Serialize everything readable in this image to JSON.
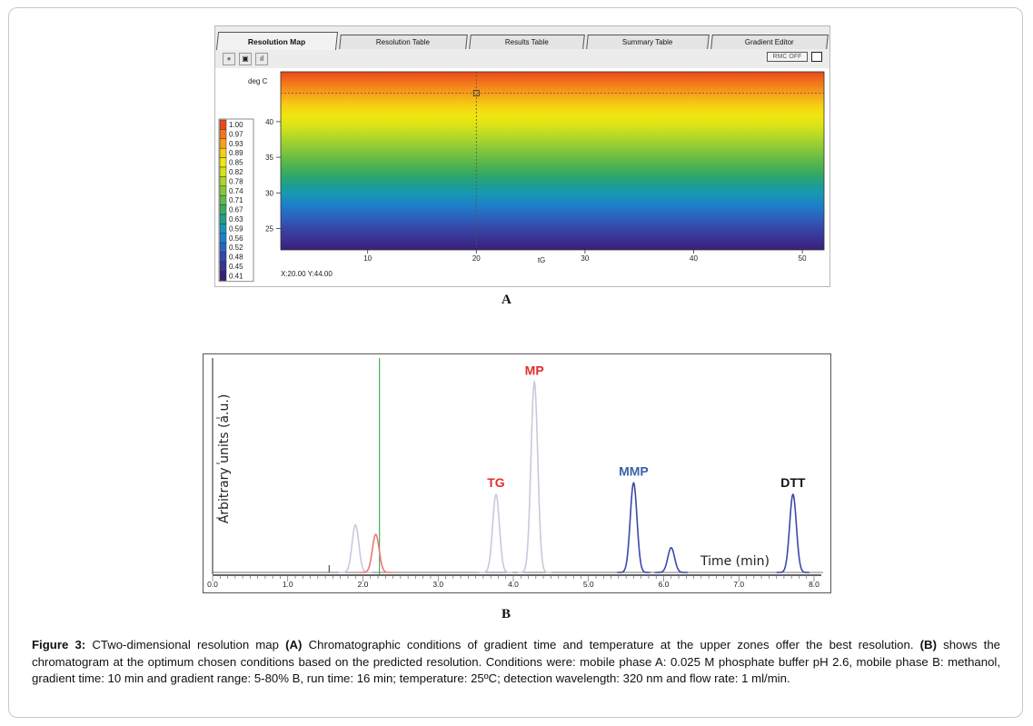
{
  "panel_a": {
    "tabs": [
      {
        "label": "Resolution Map",
        "active": true
      },
      {
        "label": "Resolution Table",
        "active": false
      },
      {
        "label": "Results Table",
        "active": false
      },
      {
        "label": "Summary Table",
        "active": false
      },
      {
        "label": "Gradient Editor",
        "active": false
      }
    ],
    "toolbar": {
      "buttons": [
        {
          "icon": "record-icon",
          "symbol": "●"
        },
        {
          "icon": "stop-icon",
          "symbol": "▣"
        },
        {
          "icon": "bars-icon",
          "symbol": "ıl"
        }
      ],
      "rmc_label": "RMC OFF"
    },
    "readout": "X:20.00  Y:44.00",
    "letter": "A"
  },
  "panel_b": {
    "letter": "B",
    "colors": {
      "trace": "#c9c9dd",
      "peaks": "#3b49a8",
      "red_peak": "#e87a7a",
      "marker": "#2e9a3a",
      "axis": "#222222"
    }
  },
  "caption": {
    "label": "Figure 3:",
    "text_1": " CTwo-dimensional resolution map ",
    "tag_a": "(A)",
    "text_2": " Chromatographic conditions of gradient time and temperature at the upper zones offer the best resolution. ",
    "tag_b": "(B)",
    "text_3": " shows the chromatogram at the optimum chosen conditions based on the predicted resolution. Conditions were: mobile phase A: 0.025 M phosphate buffer pH 2.6, mobile phase B: methanol, gradient time: 10 min and gradient range: 5-80% B, run time: 16 min; temperature: 25ºC; detection wavelength: 320 nm and flow rate: 1 ml/min."
  },
  "chart_data": [
    {
      "type": "heatmap",
      "title": "",
      "xlabel": "tG",
      "ylabel": "deg C",
      "xlim": [
        2,
        52
      ],
      "ylim": [
        22,
        47
      ],
      "x_ticks": [
        10,
        20,
        30,
        40,
        50
      ],
      "y_ticks": [
        25,
        30,
        35,
        40
      ],
      "color_scale": {
        "values": [
          "1.00",
          "0.97",
          "0.93",
          "0.89",
          "0.85",
          "0.82",
          "0.78",
          "0.74",
          "0.71",
          "0.67",
          "0.63",
          "0.59",
          "0.56",
          "0.52",
          "0.48",
          "0.45",
          "0.41"
        ],
        "colors": [
          "#e8481e",
          "#f2771c",
          "#f7a11a",
          "#f6cf14",
          "#f0e60f",
          "#d4e21a",
          "#aed52b",
          "#86c73a",
          "#5fb94a",
          "#3aab5c",
          "#20a08a",
          "#1996b4",
          "#1c7fc8",
          "#2b63bf",
          "#3647a8",
          "#3a3393",
          "#3a1f7a"
        ]
      },
      "crosshair": {
        "x": 20,
        "y": 44
      }
    },
    {
      "type": "line",
      "title": "",
      "xlabel": "Time (min)",
      "ylabel": "Arbitrary units (a.u.)",
      "xlim": [
        0,
        8.2
      ],
      "ylim": [
        0,
        1.05
      ],
      "x_ticks": [
        "0.0",
        "1.0",
        "2.0",
        "3.0",
        "4.0",
        "5.0",
        "6.0",
        "7.0",
        "8.0"
      ],
      "marker_line_x": 2.22,
      "peaks": [
        {
          "label": "",
          "rt": 1.9,
          "height": 0.25,
          "color": "trace"
        },
        {
          "label": "",
          "rt": 2.17,
          "height": 0.2,
          "color": "red_peak"
        },
        {
          "label": "TG",
          "rt": 3.77,
          "height": 0.41,
          "color": "trace",
          "label_color": "#e0302a"
        },
        {
          "label": "MP",
          "rt": 4.28,
          "height": 1.0,
          "color": "trace",
          "label_color": "#e0302a"
        },
        {
          "label": "MMP",
          "rt": 5.6,
          "height": 0.47,
          "color": "peaks",
          "label_color": "#3a62a8"
        },
        {
          "label": "",
          "rt": 6.1,
          "height": 0.13,
          "color": "peaks"
        },
        {
          "label": "DTT",
          "rt": 7.72,
          "height": 0.41,
          "color": "peaks",
          "label_color": "#111111"
        }
      ]
    }
  ]
}
